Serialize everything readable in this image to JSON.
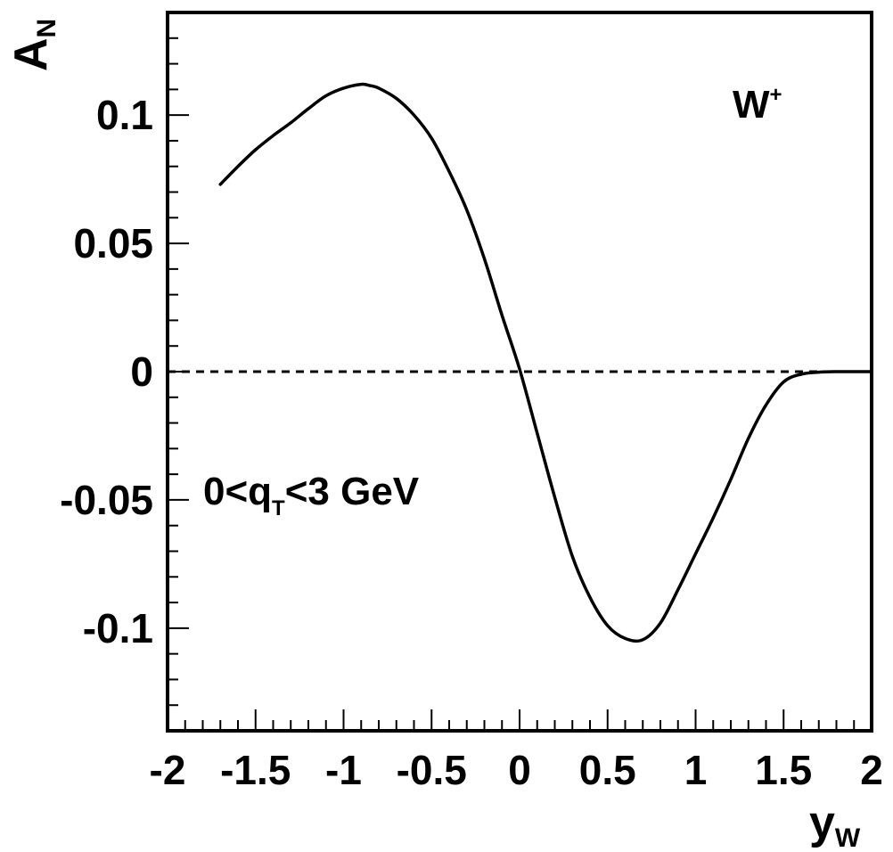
{
  "chart_data": {
    "type": "line",
    "title": "",
    "xlabel": {
      "main": "y",
      "sub": "W"
    },
    "ylabel": {
      "main": "A",
      "sub": "N"
    },
    "xlim": [
      -2,
      2
    ],
    "ylim": [
      -0.14,
      0.14
    ],
    "x_ticks": [
      -2,
      -1.5,
      -1,
      -0.5,
      0,
      0.5,
      1,
      1.5,
      2
    ],
    "x_tick_labels": [
      "-2",
      "-1.5",
      "-1",
      "-0.5",
      "0",
      "0.5",
      "1",
      "1.5",
      "2"
    ],
    "y_ticks": [
      -0.1,
      -0.05,
      0,
      0.05,
      0.1
    ],
    "y_tick_labels": [
      "-0.1",
      "-0.05",
      "0",
      "0.05",
      "0.1"
    ],
    "x_minor_step": 0.1,
    "y_minor_step": 0.01,
    "grid": false,
    "reference_line": {
      "y": 0,
      "style": "dashed"
    },
    "annotations": {
      "boson": {
        "main": "W",
        "sup": "+"
      },
      "cut": {
        "pre": "0<q",
        "sub": "T",
        "post": "<3 GeV"
      }
    },
    "series": [
      {
        "x": [
          -1.7,
          -1.6,
          -1.5,
          -1.4,
          -1.3,
          -1.2,
          -1.1,
          -1.0,
          -0.9,
          -0.85,
          -0.8,
          -0.7,
          -0.6,
          -0.5,
          -0.4,
          -0.3,
          -0.2,
          -0.1,
          0.0,
          0.1,
          0.2,
          0.3,
          0.4,
          0.5,
          0.6,
          0.7,
          0.8,
          0.9,
          1.0,
          1.1,
          1.2,
          1.3,
          1.4,
          1.5,
          1.6,
          1.7,
          1.8,
          2.0
        ],
        "y": [
          0.073,
          0.08,
          0.0865,
          0.092,
          0.097,
          0.1025,
          0.1075,
          0.1105,
          0.112,
          0.1115,
          0.1105,
          0.1065,
          0.1,
          0.091,
          0.078,
          0.063,
          0.044,
          0.022,
          0.001,
          -0.024,
          -0.049,
          -0.072,
          -0.088,
          -0.099,
          -0.104,
          -0.1045,
          -0.098,
          -0.085,
          -0.071,
          -0.057,
          -0.042,
          -0.026,
          -0.013,
          -0.004,
          -0.001,
          -0.0002,
          0.0,
          0.0
        ]
      }
    ]
  }
}
